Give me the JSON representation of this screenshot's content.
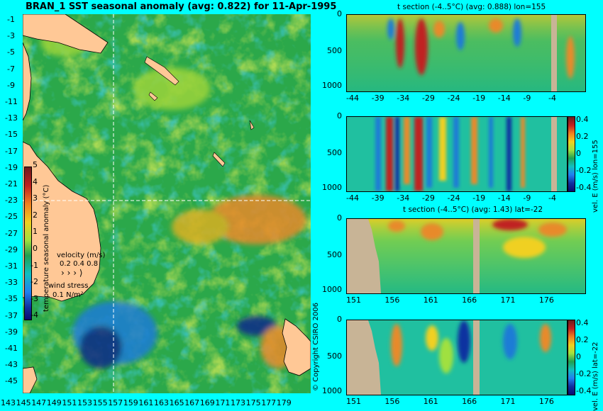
{
  "colors": {
    "background": "#00ffff",
    "land": "#ffc896",
    "section_land": "#c8b496",
    "ocean_base": "#2ba84a"
  },
  "chart_data": [
    {
      "type": "heatmap",
      "title": "BRAN_1  SST seasonal anomaly  (avg: 0.822)  for 11-Apr-1995",
      "y_ticks": [
        "-1",
        "-3",
        "-5",
        "-7",
        "-9",
        "-11",
        "-13",
        "-15",
        "-17",
        "-19",
        "-21",
        "-23",
        "-25",
        "-27",
        "-29",
        "-31",
        "-33",
        "-35",
        "-37",
        "-39",
        "-41",
        "-43",
        "-45"
      ],
      "x_ticks": [
        "143",
        "145",
        "147",
        "149",
        "151",
        "153",
        "155",
        "157",
        "159",
        "161",
        "163",
        "165",
        "167",
        "169",
        "171",
        "173",
        "175",
        "177",
        "179"
      ],
      "xlim": [
        143,
        180
      ],
      "ylim": [
        -45,
        0
      ],
      "colorbar": {
        "label": "temperature seasonal anomaly (°C)",
        "ticks": [
          "5",
          "4",
          "3",
          "2",
          "1",
          "0",
          "-1",
          "-2",
          "-3",
          "-4"
        ],
        "range": [
          -4,
          5
        ]
      },
      "velocity_label": "velocity (m/s)",
      "velocity_values": "0.2 0.4 0.8",
      "wind_label": "wind stress",
      "wind_values": "0.1 N/m²",
      "copyright": "© Copyright CSIRO 2006",
      "crosshair": {
        "lon": 155,
        "lat": -22
      }
    },
    {
      "type": "heatmap",
      "title": "t section (-4..5°C) (avg: 0.888) lon=155",
      "y_ticks": [
        "0",
        "500",
        "1000"
      ],
      "x_ticks": [
        "-44",
        "-39",
        "-34",
        "-29",
        "-24",
        "-19",
        "-14",
        "-9",
        "-4"
      ]
    },
    {
      "type": "heatmap",
      "title": "",
      "y_ticks": [
        "0",
        "500",
        "1000"
      ],
      "x_ticks": [
        "-44",
        "-39",
        "-34",
        "-29",
        "-24",
        "-19",
        "-14",
        "-9",
        "-4"
      ],
      "colorbar": {
        "label": "vel. E (m/s) lon=155",
        "ticks": [
          "0.4",
          "0.2",
          "0",
          "-0.2",
          "-0.4"
        ]
      }
    },
    {
      "type": "heatmap",
      "title": "t section (-4..5°C) (avg: 1.43) lat=-22",
      "y_ticks": [
        "0",
        "500",
        "1000"
      ],
      "x_ticks": [
        "151",
        "156",
        "161",
        "166",
        "171",
        "176"
      ]
    },
    {
      "type": "heatmap",
      "title": "",
      "y_ticks": [
        "0",
        "500",
        "1000"
      ],
      "x_ticks": [
        "151",
        "156",
        "161",
        "166",
        "171",
        "176"
      ],
      "colorbar": {
        "label": "vel. E (m/s) lat=-22",
        "ticks": [
          "0.4",
          "0.2",
          "0",
          "-0.2",
          "-0.4"
        ]
      }
    }
  ]
}
